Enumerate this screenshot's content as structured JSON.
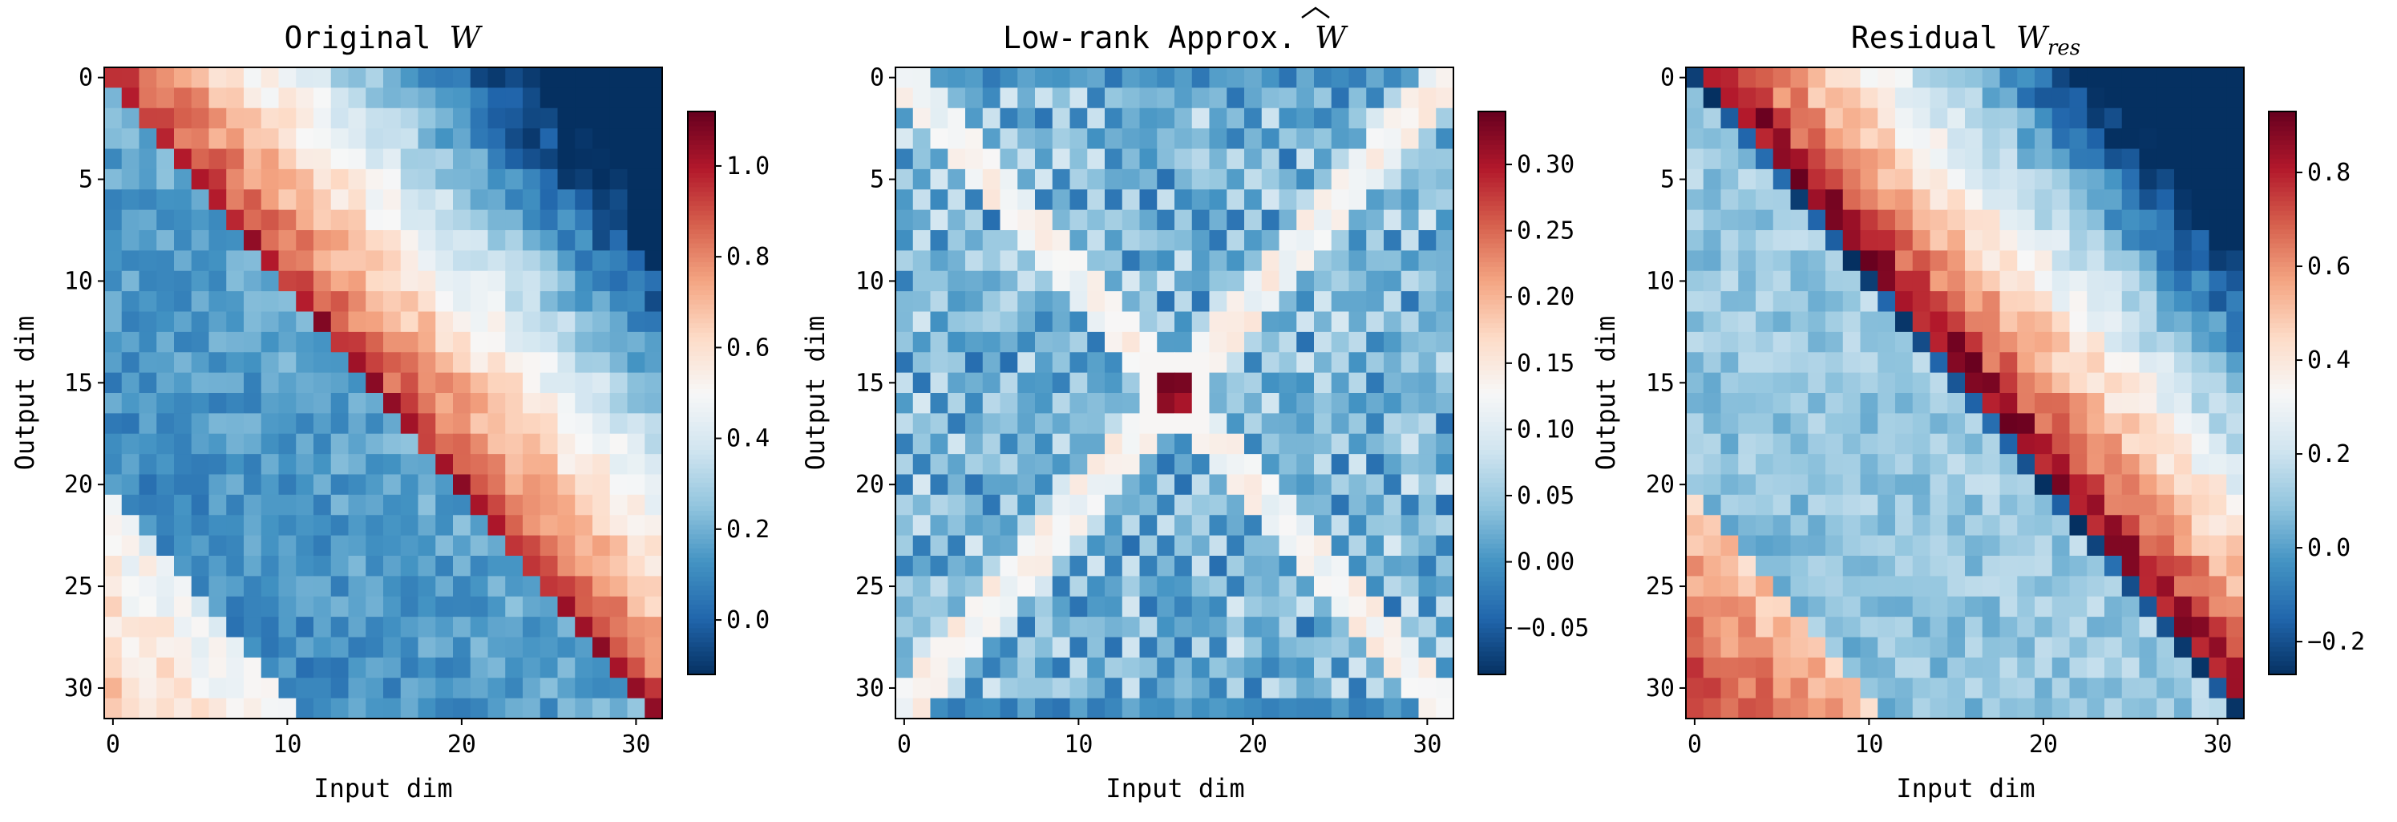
{
  "chart_data": [
    {
      "type": "heatmap",
      "title": "Original ",
      "title_math": "W",
      "title_math_sub": "",
      "xlabel": "Input dim",
      "ylabel": "Output dim",
      "size": 32,
      "x_ticks": [
        "0",
        "10",
        "20",
        "30"
      ],
      "y_ticks": [
        "0",
        "5",
        "10",
        "15",
        "20",
        "25",
        "30"
      ],
      "pattern": "banded",
      "colorbar": {
        "vmin": -0.12,
        "vmax": 1.12,
        "ticks": [
          "0.0",
          "0.2",
          "0.4",
          "0.6",
          "0.8",
          "1.0"
        ],
        "tick_values": [
          0.0,
          0.2,
          0.4,
          0.6,
          0.8,
          1.0
        ]
      },
      "colormap": "RdBu_r"
    },
    {
      "type": "heatmap",
      "title": "Low-rank Approx. ",
      "title_math": "W",
      "title_math_hat": true,
      "title_math_sub": "",
      "xlabel": "Input dim",
      "ylabel": "Output dim",
      "size": 32,
      "x_ticks": [
        "0",
        "10",
        "20",
        "30"
      ],
      "y_ticks": [
        "0",
        "5",
        "10",
        "15",
        "20",
        "25",
        "30"
      ],
      "pattern": "x-shape",
      "colorbar": {
        "vmin": -0.085,
        "vmax": 0.34,
        "ticks": [
          "−0.05",
          "0.00",
          "0.05",
          "0.10",
          "0.15",
          "0.20",
          "0.25",
          "0.30"
        ],
        "tick_values": [
          -0.05,
          0.0,
          0.05,
          0.1,
          0.15,
          0.2,
          0.25,
          0.3
        ]
      },
      "colormap": "RdBu_r"
    },
    {
      "type": "heatmap",
      "title": "Residual ",
      "title_math": "W",
      "title_math_sub": "res",
      "xlabel": "Input dim",
      "ylabel": "Output dim",
      "size": 32,
      "x_ticks": [
        "0",
        "10",
        "20",
        "30"
      ],
      "y_ticks": [
        "0",
        "5",
        "10",
        "15",
        "20",
        "25",
        "30"
      ],
      "pattern": "residual",
      "colorbar": {
        "vmin": -0.27,
        "vmax": 0.93,
        "ticks": [
          "−0.2",
          "0.0",
          "0.2",
          "0.4",
          "0.6",
          "0.8"
        ],
        "tick_values": [
          -0.2,
          0.0,
          0.2,
          0.4,
          0.6,
          0.8
        ]
      },
      "colormap": "RdBu_r"
    }
  ]
}
